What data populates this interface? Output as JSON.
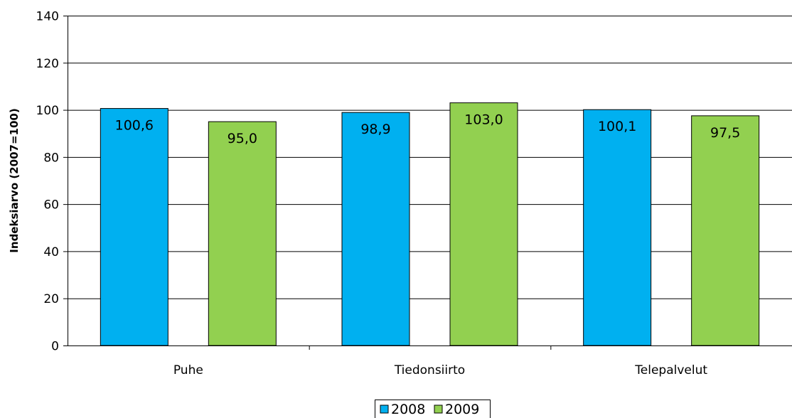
{
  "chart_data": {
    "type": "bar",
    "title": "",
    "xlabel": "",
    "ylabel": "Indeksiarvo (2007=100)",
    "ylim": [
      0,
      140
    ],
    "yticks": [
      0,
      20,
      40,
      60,
      80,
      100,
      120,
      140
    ],
    "categories": [
      "Puhe",
      "Tiedonsiirto",
      "Telepalvelut"
    ],
    "series": [
      {
        "name": "2008",
        "values": [
          100.6,
          98.9,
          100.1
        ],
        "labels": [
          "100,6",
          "98,9",
          "100,1"
        ],
        "color": "#00B0F0"
      },
      {
        "name": "2009",
        "values": [
          95.0,
          103.0,
          97.5
        ],
        "labels": [
          "95,0",
          "103,0",
          "97,5"
        ],
        "color": "#92D050"
      }
    ],
    "grid": true,
    "legend": "bottom-center"
  }
}
